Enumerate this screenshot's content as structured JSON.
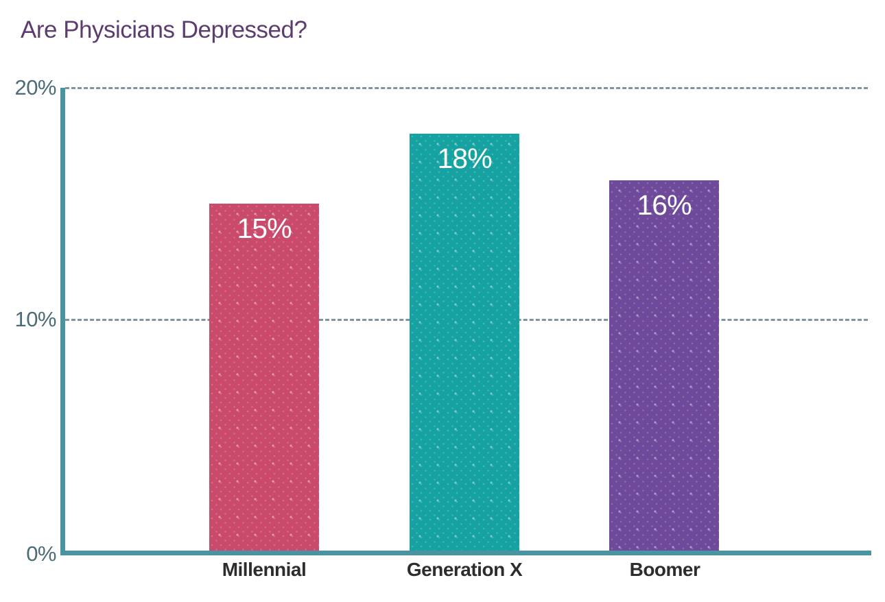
{
  "chart_data": {
    "type": "bar",
    "title": "Are Physicians Depressed?",
    "categories": [
      "Millennial",
      "Generation X",
      "Boomer"
    ],
    "values": [
      15,
      18,
      16
    ],
    "unit": "%",
    "value_labels": [
      "15%",
      "18%",
      "16%"
    ],
    "bar_colors": [
      "#ca4a6c",
      "#17a2a2",
      "#6f4a9b"
    ],
    "xlabel": "",
    "ylabel": "",
    "ylim": [
      0,
      20
    ],
    "y_ticks": [
      0,
      10,
      20
    ],
    "y_tick_labels": [
      "0%",
      "10%",
      "20%"
    ],
    "grid": "horizontal dashed gridlines at 10% and 20%",
    "legend": "none"
  },
  "title": {
    "text": "Are Physicians Depressed?"
  },
  "y_axis": {
    "tick_20": "20%",
    "tick_10": "10%",
    "tick_0": "0%"
  },
  "bars": [
    {
      "category": "Millennial",
      "value": 15,
      "label": "15%",
      "color": "#ca4a6c"
    },
    {
      "category": "Generation X",
      "value": 18,
      "label": "18%",
      "color": "#17a2a2"
    },
    {
      "category": "Boomer",
      "value": 16,
      "label": "16%",
      "color": "#6f4a9b"
    }
  ],
  "colors": {
    "title": "#5d3c70",
    "axis": "#4a93a0",
    "gridline": "#7e94a0",
    "tick_label": "#4d6b77",
    "category_label": "#2d2d2d",
    "value_label": "#ffffff",
    "background": "#ffffff"
  }
}
